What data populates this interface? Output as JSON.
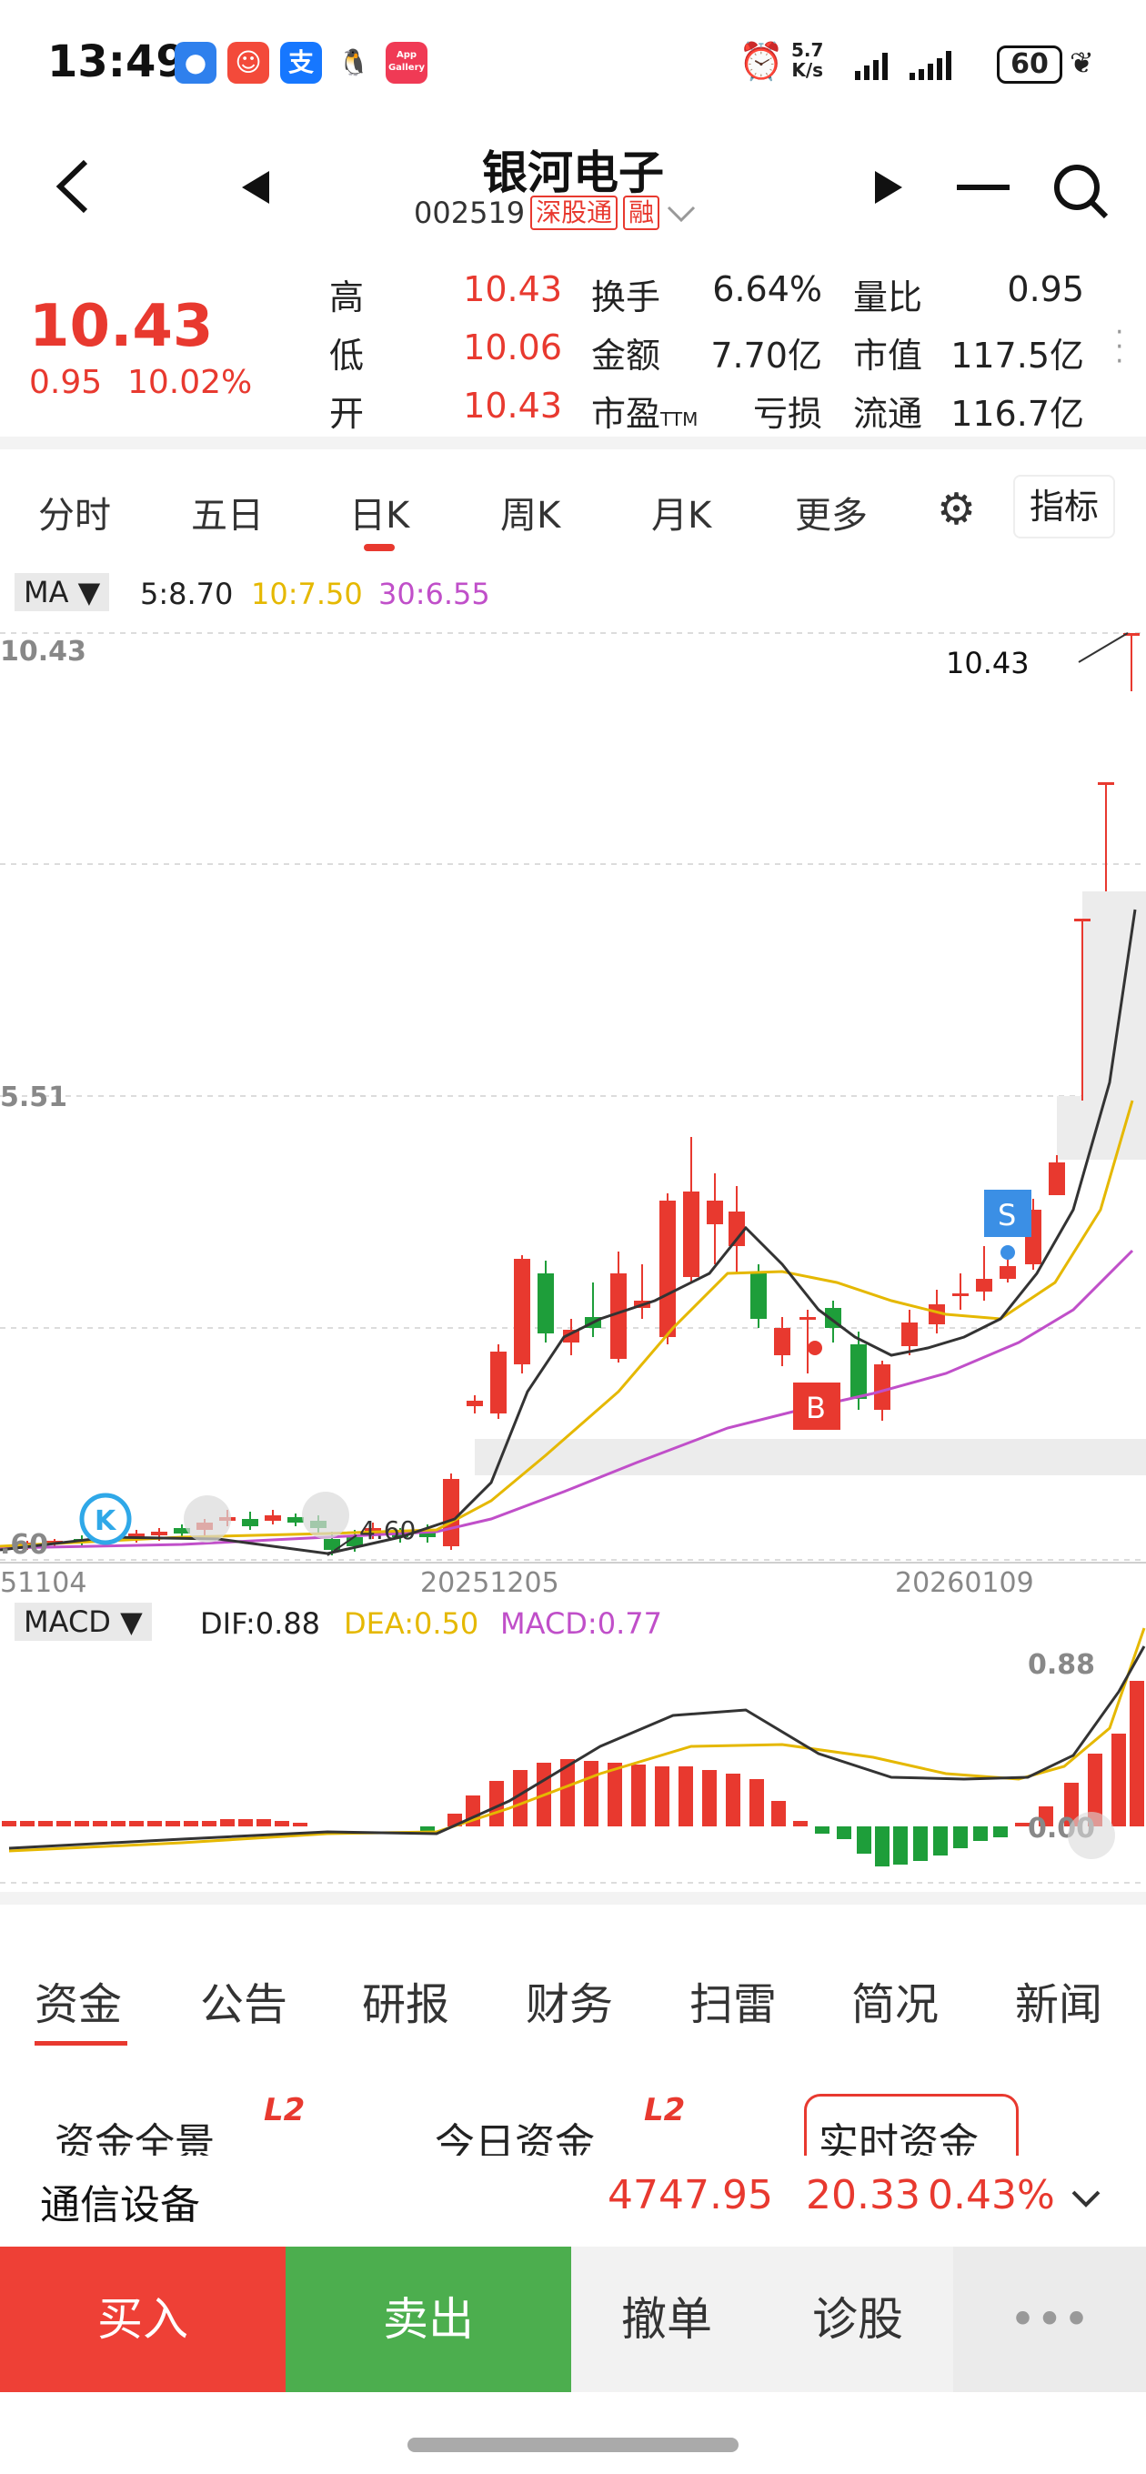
{
  "status_bar": {
    "time": "13:49",
    "net_speed_top": "5.7",
    "net_speed_unit": "K/s",
    "battery": "60",
    "app_badge": "App Gallery"
  },
  "header": {
    "stock_name": "银河电子",
    "stock_code": "002519",
    "tag_connect": "深股通",
    "tag_margin": "融"
  },
  "quote": {
    "price": "10.43",
    "change": "0.95",
    "change_pct": "10.02%",
    "rows": [
      {
        "l1": "高",
        "v1": "10.43",
        "l2": "换手",
        "v2": "6.64%",
        "l3": "量比",
        "v3": "0.95"
      },
      {
        "l1": "低",
        "v1": "10.06",
        "l2": "金额",
        "v2": "7.70亿",
        "l3": "市值",
        "v3": "117.5亿"
      },
      {
        "l1": "开",
        "v1": "10.43",
        "l2": "市盈",
        "l2sub": "TTM",
        "v2": "亏损",
        "l3": "流通",
        "v3": "116.7亿"
      }
    ]
  },
  "kline_tabs": [
    "分时",
    "五日",
    "日K",
    "周K",
    "月K",
    "更多"
  ],
  "indicator_label": "指标",
  "ma_legend": {
    "selector": "MA ▼",
    "ma5": "5:8.70",
    "ma10": "10:7.50",
    "ma30": "30:6.55"
  },
  "macd_legend": {
    "selector": "MACD ▼",
    "dif": "DIF:0.88",
    "dea": "DEA:0.50",
    "macd": "MACD:0.77"
  },
  "chart_data": {
    "type": "candlestick",
    "axis_labels_y": [
      "10.43",
      "5.51",
      ".60"
    ],
    "axis_labels_x": [
      "51104",
      "20251205",
      "20260109"
    ],
    "high_annotation": "10.43",
    "low_annotation": "4.60",
    "markers": [
      "S",
      "B",
      "K"
    ],
    "macd_top": "0.88",
    "macd_zero": "0.00"
  },
  "colors": {
    "up": "#e8392f",
    "down": "#1e9e3a",
    "ma5": "#333333",
    "ma10": "#e5b800",
    "ma30": "#c04fc9"
  },
  "bottom_tabs": [
    "资金",
    "公告",
    "研报",
    "财务",
    "扫雷",
    "简况",
    "新闻"
  ],
  "sub_tabs": {
    "a": "资金全景",
    "b": "今日资金",
    "c": "实时资金",
    "l2": "L2"
  },
  "sector": {
    "name": "通信设备",
    "index": "4747.95",
    "change": "20.33",
    "pct": "0.43%"
  },
  "actions": {
    "buy": "买入",
    "sell": "卖出",
    "cancel": "撤单",
    "diagnose": "诊股",
    "more": "•••"
  }
}
